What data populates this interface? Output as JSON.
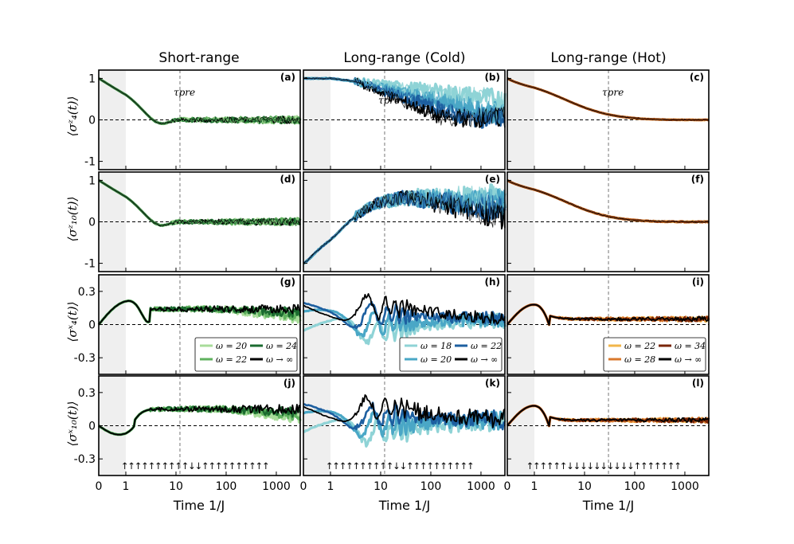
{
  "column_titles": [
    "Short-range",
    "Long-range (Cold)",
    "Long-range (Hot)"
  ],
  "row_ylabels": [
    "⟨σᶻ₄(t)⟩",
    "⟨σᶻ₁₀(t)⟩",
    "⟨σˣ₄(t)⟩",
    "⟨σˣ₁₀(t)⟩"
  ],
  "xlabel": "Time 1/J",
  "tau_label": "τpre",
  "chart_data": {
    "type": "line",
    "layout": "4x3 grid of panels",
    "x_axis": {
      "scale": "linear below 1, log from 1 to ~3000",
      "ticks": [
        "0",
        "1",
        "10",
        "100",
        "1000"
      ],
      "range": [
        0,
        3000
      ],
      "prethermal_shade": [
        0,
        1
      ]
    },
    "row_ticks": [
      [
        "-1",
        "0",
        "1"
      ],
      [
        "-1",
        "0",
        "1"
      ],
      [
        "-0.3",
        "0",
        "0.3"
      ],
      [
        "-0.3",
        "0",
        "0.3"
      ]
    ],
    "row_ylim": [
      [
        -1.2,
        1.2
      ],
      [
        -1.2,
        1.2
      ],
      [
        -0.45,
        0.45
      ],
      [
        -0.45,
        0.45
      ]
    ],
    "tau_pre": [
      12,
      12,
      30
    ],
    "legends": [
      {
        "panel": "g",
        "items": [
          "ω = 20",
          "ω = 22",
          "ω = 24",
          "ω → ∞"
        ],
        "colors": [
          "#a8dc9a",
          "#5fb15e",
          "#1b6b2f",
          "#000000"
        ]
      },
      {
        "panel": "h",
        "items": [
          "ω = 18",
          "ω = 20",
          "ω = 22",
          "ω → ∞"
        ],
        "colors": [
          "#8fd3d6",
          "#4aa7c6",
          "#1d5fa0",
          "#000000"
        ]
      },
      {
        "panel": "i",
        "items": [
          "ω = 22",
          "ω = 28",
          "ω = 34",
          "ω → ∞"
        ],
        "colors": [
          "#f2b64a",
          "#d9782c",
          "#7a2608",
          "#000000"
        ]
      }
    ],
    "spin_configs": [
      "↑↑↑↑↑↑↑↑↑↑↓↓↑↑↑↑↑↑↑↑↑↑",
      "↑↑↑↑↑↑↑↑↑↑↓↓↑↑↑↑↑↑↑↑↑↑",
      "↑↑↑↑↑↑↓↓↓↓↓↓↓↓↓↓↑↑↑↑↑↑↑"
    ],
    "panels": [
      {
        "label": "(a)",
        "row": 0,
        "col": 0,
        "shape": "crossover",
        "final": 0,
        "noise": 0.04,
        "palette": "green"
      },
      {
        "label": "(b)",
        "row": 0,
        "col": 1,
        "shape": "slow_decay",
        "final": 0.6,
        "noise": 0.12,
        "palette": "blue"
      },
      {
        "label": "(c)",
        "row": 0,
        "col": 2,
        "shape": "smooth_decay",
        "final": 0,
        "noise": 0.01,
        "palette": "orange"
      },
      {
        "label": "(d)",
        "row": 1,
        "col": 0,
        "shape": "crossover",
        "final": 0,
        "noise": 0.04,
        "palette": "green"
      },
      {
        "label": "(e)",
        "row": 1,
        "col": 1,
        "shape": "slow_rise",
        "final": 0.6,
        "noise": 0.15,
        "palette": "blue"
      },
      {
        "label": "(f)",
        "row": 1,
        "col": 2,
        "shape": "smooth_decay",
        "final": 0,
        "noise": 0.02,
        "palette": "orange"
      },
      {
        "label": "(g)",
        "row": 2,
        "col": 0,
        "shape": "bump_plateau",
        "final": 0.14,
        "noise": 0.02,
        "palette": "green"
      },
      {
        "label": "(h)",
        "row": 2,
        "col": 1,
        "shape": "spread",
        "final": 0.05,
        "noise": 0.03,
        "palette": "blue"
      },
      {
        "label": "(i)",
        "row": 2,
        "col": 2,
        "shape": "peak_plateau",
        "final": 0.05,
        "noise": 0.01,
        "palette": "orange"
      },
      {
        "label": "(j)",
        "row": 3,
        "col": 0,
        "shape": "dip_plateau",
        "final": 0.15,
        "noise": 0.02,
        "palette": "green"
      },
      {
        "label": "(k)",
        "row": 3,
        "col": 1,
        "shape": "spread",
        "final": 0.05,
        "noise": 0.04,
        "palette": "blue"
      },
      {
        "label": "(l)",
        "row": 3,
        "col": 2,
        "shape": "peak_plateau",
        "final": 0.05,
        "noise": 0.01,
        "palette": "orange"
      }
    ]
  }
}
